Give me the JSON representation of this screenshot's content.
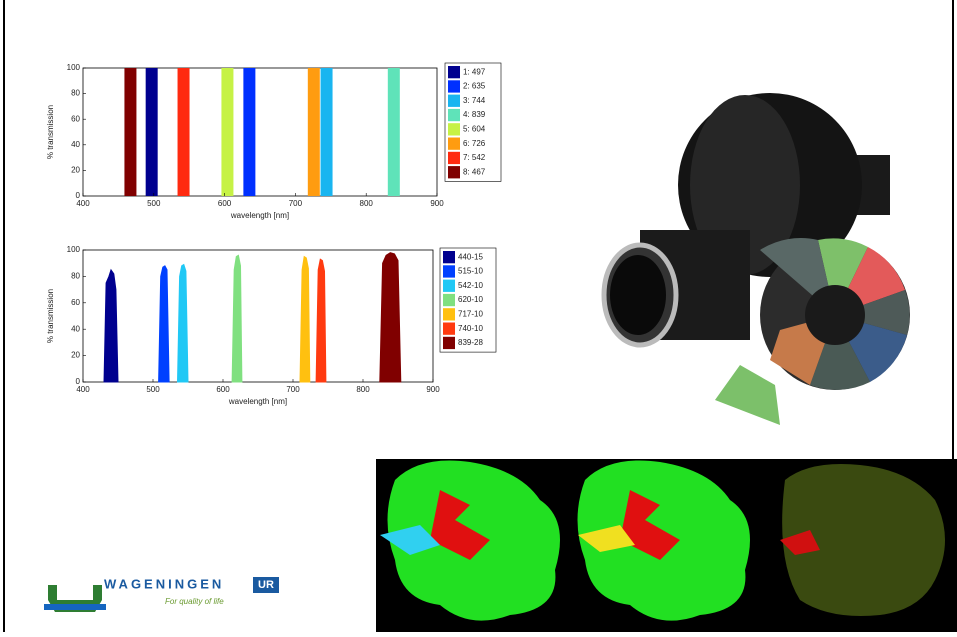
{
  "chart_data": [
    {
      "type": "bar",
      "ylabel": "% transmission",
      "xlabel": "wavelength [nm]",
      "xlim": [
        400,
        900
      ],
      "xticks": [
        400,
        500,
        600,
        700,
        800,
        900
      ],
      "ylim": [
        0,
        100
      ],
      "yticks": [
        0,
        20,
        40,
        60,
        80,
        100
      ],
      "series": [
        {
          "name": "1: 497",
          "color": "#00008f",
          "x": [
            497
          ],
          "values": [
            100
          ]
        },
        {
          "name": "2: 635",
          "color": "#0030ff",
          "x": [
            635
          ],
          "values": [
            100
          ]
        },
        {
          "name": "3: 744",
          "color": "#19b5f0",
          "x": [
            744
          ],
          "values": [
            100
          ]
        },
        {
          "name": "4: 839",
          "color": "#5fe3b9",
          "x": [
            839
          ],
          "values": [
            100
          ]
        },
        {
          "name": "5: 604",
          "color": "#c6f245",
          "x": [
            604
          ],
          "values": [
            100
          ]
        },
        {
          "name": "6: 726",
          "color": "#ff9c10",
          "x": [
            726
          ],
          "values": [
            100
          ]
        },
        {
          "name": "7: 542",
          "color": "#ff2a10",
          "x": [
            542
          ],
          "values": [
            100
          ]
        },
        {
          "name": "8: 467",
          "color": "#800000",
          "x": [
            467
          ],
          "values": [
            100
          ]
        }
      ]
    },
    {
      "type": "area",
      "ylabel": "% transmission",
      "xlabel": "wavelength [nm]",
      "xlim": [
        400,
        900
      ],
      "xticks": [
        400,
        500,
        600,
        700,
        800,
        900
      ],
      "ylim": [
        0,
        100
      ],
      "yticks": [
        0,
        20,
        40,
        60,
        80,
        100
      ],
      "series": [
        {
          "name": "440-15",
          "color": "#00008f",
          "x": [
            430,
            433,
            437,
            440,
            444,
            447,
            450
          ],
          "values": [
            0,
            75,
            80,
            85,
            82,
            70,
            0
          ]
        },
        {
          "name": "515-10",
          "color": "#0040ff",
          "x": [
            508,
            511,
            514,
            517,
            520,
            523
          ],
          "values": [
            0,
            80,
            87,
            88,
            85,
            0
          ]
        },
        {
          "name": "542-10",
          "color": "#20c8f5",
          "x": [
            535,
            538,
            541,
            544,
            547,
            550
          ],
          "values": [
            0,
            80,
            88,
            89,
            84,
            0
          ]
        },
        {
          "name": "620-10",
          "color": "#80e080",
          "x": [
            613,
            616,
            619,
            622,
            625,
            627
          ],
          "values": [
            0,
            85,
            95,
            96,
            88,
            0
          ]
        },
        {
          "name": "717-10",
          "color": "#ffc010",
          "x": [
            710,
            713,
            716,
            719,
            722,
            724
          ],
          "values": [
            0,
            85,
            95,
            94,
            86,
            0
          ]
        },
        {
          "name": "740-10",
          "color": "#ff3a10",
          "x": [
            733,
            736,
            739,
            742,
            745,
            747
          ],
          "values": [
            0,
            85,
            93,
            92,
            84,
            0
          ]
        },
        {
          "name": "839-28",
          "color": "#800000",
          "x": [
            824,
            828,
            833,
            839,
            845,
            850,
            854
          ],
          "values": [
            0,
            90,
            96,
            98,
            97,
            92,
            0
          ]
        }
      ]
    }
  ],
  "logo": {
    "name": "WAGENINGEN",
    "mark": "UR",
    "tagline": "For quality of life"
  }
}
